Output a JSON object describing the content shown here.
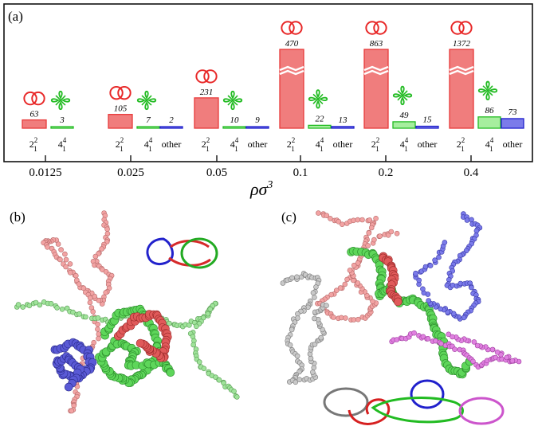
{
  "panels": {
    "a": "(a)",
    "b": "(b)",
    "c": "(c)"
  },
  "chart_data": {
    "type": "bar",
    "xlabel": "ρσ",
    "xlabel_superscript": "3",
    "categories": [
      "0.0125",
      "0.025",
      "0.05",
      "0.1",
      "0.2",
      "0.4"
    ],
    "category_labels": [
      "2",
      "4",
      "other"
    ],
    "category_label_subscript": "1",
    "category_label_superscripts": [
      "2",
      "4"
    ],
    "series": [
      {
        "values": [
          63,
          105,
          231,
          470,
          863,
          1372
        ],
        "display": [
          "63",
          "105",
          "231",
          "470",
          "863",
          "1372"
        ]
      },
      {
        "values": [
          3,
          7,
          10,
          22,
          49,
          86
        ],
        "display": [
          "3",
          "7",
          "10",
          "22",
          "49",
          "86"
        ]
      },
      {
        "values": [
          0,
          2,
          9,
          13,
          15,
          73
        ],
        "display": [
          "",
          "2",
          "9",
          "13",
          "15",
          "73"
        ]
      }
    ],
    "broken_axis_categories": [
      "0.1",
      "0.2",
      "0.4"
    ],
    "colors": {
      "link": "#f07d7d",
      "link_edge": "#e83a3a",
      "knot": "#a6ee9e",
      "knot_edge": "#22bb22",
      "other": "#7b7bea",
      "other_edge": "#1f1fcc"
    }
  },
  "icons": [
    "hopf-link-icon",
    "figure-eight-knot-icon"
  ]
}
